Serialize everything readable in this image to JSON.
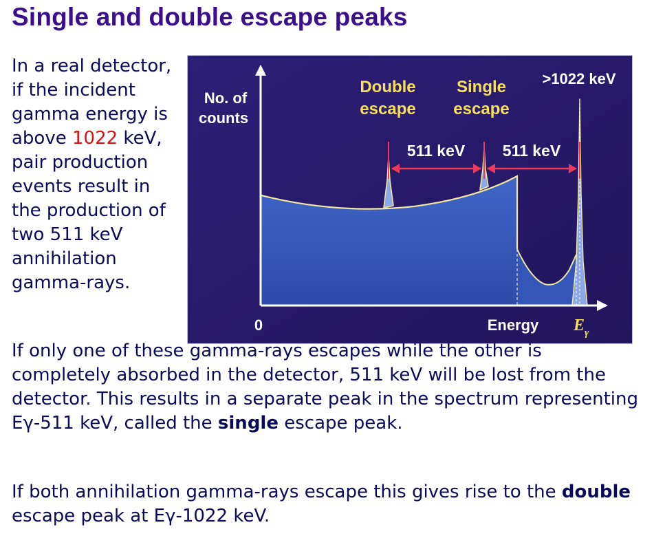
{
  "heading": "Single and double escape peaks",
  "p1": {
    "t1": "In a real detector, if the incident gamma energy is above ",
    "threshold": "1022",
    "t2": " keV, pair production events result in the production of two 511 keV annihilation gamma-rays."
  },
  "p2": {
    "t1": "If only one of these gamma-rays escapes while the other is completely absorbed in the detector, 511 keV will be lost from the detector. This results in a separate peak in the spectrum representing E",
    "gamma": "γ",
    "t2": "-511 keV, called the ",
    "bold": "single",
    "t3": " escape peak."
  },
  "p3": {
    "t1": "If both annihilation gamma-rays escape this gives rise to the ",
    "bold": "double",
    "t2": " escape peak at E",
    "gamma": "γ",
    "t3": "-1022 keV."
  },
  "diagram": {
    "ylabel_line1": "No. of",
    "ylabel_line2": "counts",
    "origin_label": "0",
    "xlabel": "Energy",
    "egamma_E": "E",
    "egamma_sub": "γ",
    "double_line1": "Double",
    "double_line2": "escape",
    "single_line1": "Single",
    "single_line2": "escape",
    "full_label": ">1022 keV",
    "gap1_label": "511 keV",
    "gap2_label": "511 keV",
    "colors": {
      "background": "#2a1a6e",
      "fill": "#3a5dbf",
      "curve": "#f2e6a0",
      "arrow": "#ee3a5a",
      "label": "#f4e05a",
      "axis": "#ffffff"
    }
  }
}
